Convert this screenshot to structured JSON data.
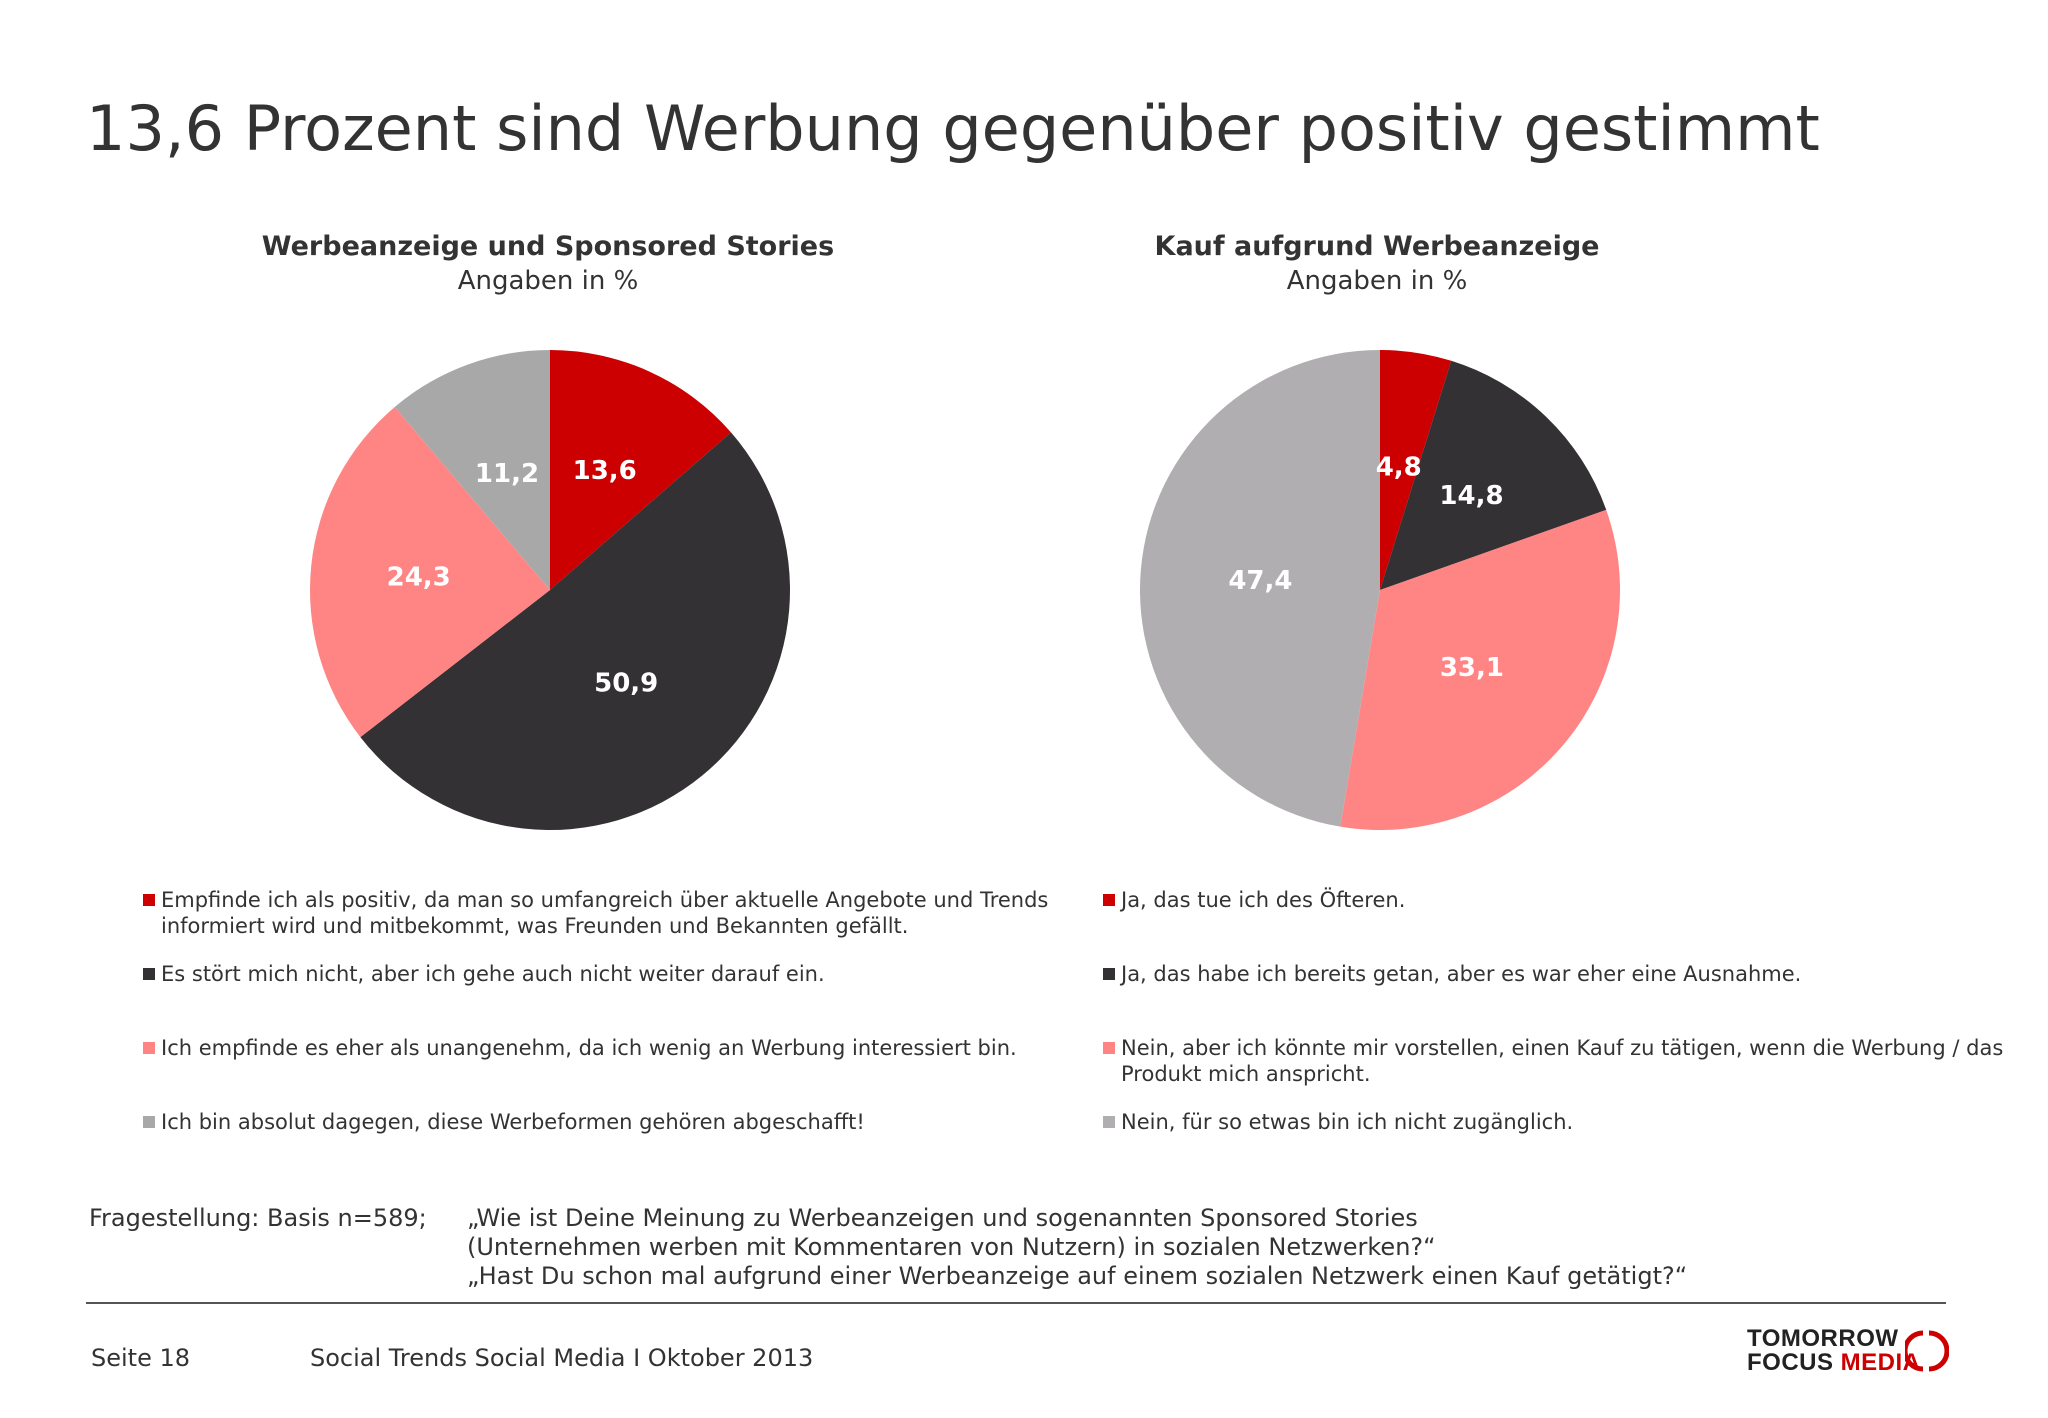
{
  "page": {
    "title": "13,6 Prozent sind Werbung gegenüber positiv gestimmt"
  },
  "chart_data": [
    {
      "type": "pie",
      "title": "Werbeanzeige und Sponsored Stories",
      "subtitle": "Angaben in %",
      "slices": [
        {
          "label": "Empfinde ich als positiv, da man so umfangreich über aktuelle Angebote und Trends informiert wird und mitbekommt, was Freunden und Bekannten gefällt.",
          "value": 13.6,
          "display": "13,6",
          "color": "#cc0000",
          "label_color": "#ffffff"
        },
        {
          "label": "Es stört mich nicht, aber ich gehe auch nicht weiter darauf ein.",
          "value": 50.9,
          "display": "50,9",
          "color": "#333133",
          "label_color": "#ffffff"
        },
        {
          "label": "Ich empfinde es eher als unangenehm, da ich wenig an Werbung interessiert bin.",
          "value": 24.3,
          "display": "24,3",
          "color": "#ff8585",
          "label_color": "#ffffff"
        },
        {
          "label": "Ich bin absolut dagegen, diese Werbeformen gehören abgeschafft!",
          "value": 11.2,
          "display": "11,2",
          "color": "#a8a8a9",
          "label_color": "#ffffff"
        }
      ]
    },
    {
      "type": "pie",
      "title": "Kauf aufgrund Werbeanzeige",
      "subtitle": "Angaben in %",
      "slices": [
        {
          "label": "Ja, das tue ich des Öfteren.",
          "value": 4.8,
          "display": "4,8",
          "color": "#cc0000",
          "label_color": "#ffffff"
        },
        {
          "label": "Ja, das habe ich bereits getan, aber es war eher eine Ausnahme.",
          "value": 14.8,
          "display": "14,8",
          "color": "#333133",
          "label_color": "#ffffff"
        },
        {
          "label": "Nein, aber ich könnte mir vorstellen, einen Kauf zu tätigen, wenn die Werbung / das Produkt mich anspricht.",
          "value": 33.1,
          "display": "33,1",
          "color": "#ff8585",
          "label_color": "#ffffff"
        },
        {
          "label": "Nein, für so etwas bin ich nicht zugänglich.",
          "value": 47.4,
          "display": "47,4",
          "color": "#b0aeb0",
          "label_color": "#ffffff"
        }
      ]
    }
  ],
  "question": {
    "basis": "Fragestellung: Basis n=589;",
    "lines": [
      "„Wie ist Deine Meinung zu Werbeanzeigen und sogenannten Sponsored Stories",
      "(Unternehmen werben mit Kommentaren von Nutzern) in sozialen Netzwerken?“",
      "„Hast Du schon mal aufgrund einer Werbeanzeige auf einem sozialen Netzwerk einen Kauf getätigt?“"
    ]
  },
  "footer": {
    "page": "Seite 18",
    "source": "Social Trends Social Media I Oktober 2013"
  },
  "logo": {
    "line1": "TOMORROW",
    "line2a": "FOCUS ",
    "line2b": "MEDIA"
  }
}
